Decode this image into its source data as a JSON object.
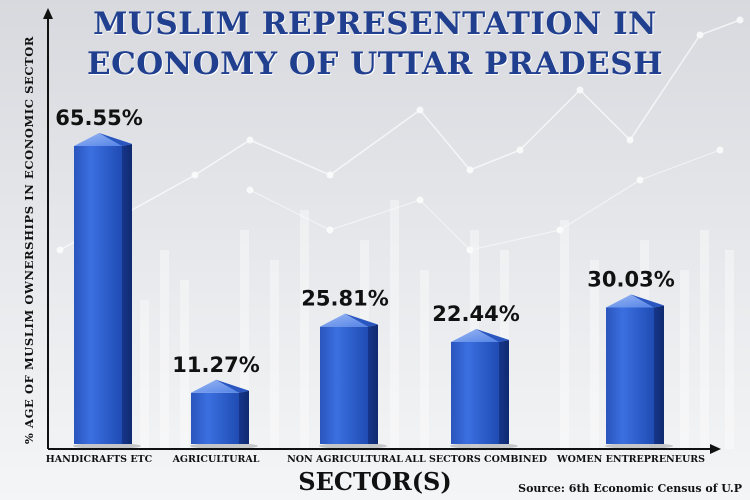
{
  "chart_data": {
    "type": "bar",
    "title_lines": [
      "MUSLIM REPRESENTATION IN",
      "ECONOMY OF UTTAR PRADESH"
    ],
    "xlabel": "SECTOR(S)",
    "ylabel": "% AGE OF MUSLIM OWNERSHIPS IN ECONOMIC SECTOR",
    "categories": [
      "HANDICRAFTS ETC",
      "AGRICULTURAL",
      "NON AGRICULTURAL",
      "ALL SECTORS COMBINED",
      "WOMEN ENTREPRENEURS"
    ],
    "values": [
      65.55,
      11.27,
      25.81,
      22.44,
      30.03
    ],
    "value_labels": [
      "65.55%",
      "11.27%",
      "25.81%",
      "22.44%",
      "30.03%"
    ],
    "ylim": [
      0,
      70
    ],
    "grid": false,
    "legend": "none",
    "bar_color": "#2f63d0",
    "source": "Source: 6th Economic Census of U.P"
  }
}
